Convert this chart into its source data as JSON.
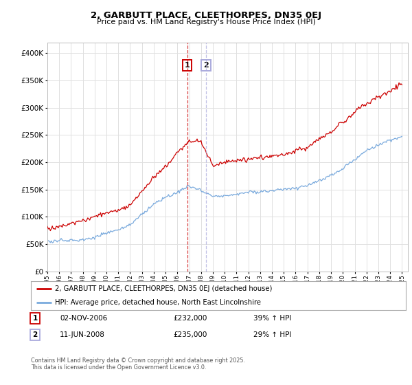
{
  "title": "2, GARBUTT PLACE, CLEETHORPES, DN35 0EJ",
  "subtitle": "Price paid vs. HM Land Registry's House Price Index (HPI)",
  "red_label": "2, GARBUTT PLACE, CLEETHORPES, DN35 0EJ (detached house)",
  "blue_label": "HPI: Average price, detached house, North East Lincolnshire",
  "transaction1_date": "02-NOV-2006",
  "transaction1_price": 232000,
  "transaction1_hpi": "39% ↑ HPI",
  "transaction2_date": "11-JUN-2008",
  "transaction2_price": 235000,
  "transaction2_hpi": "29% ↑ HPI",
  "copyright": "Contains HM Land Registry data © Crown copyright and database right 2025.\nThis data is licensed under the Open Government Licence v3.0.",
  "ylim": [
    0,
    420000
  ],
  "red_color": "#cc0000",
  "blue_color": "#7aaadd",
  "vline1_color": "#cc0000",
  "vline2_color": "#aaaadd",
  "background_color": "#ffffff",
  "grid_color": "#e0e0e0",
  "t1_year": 2006.83,
  "t2_year": 2008.42
}
